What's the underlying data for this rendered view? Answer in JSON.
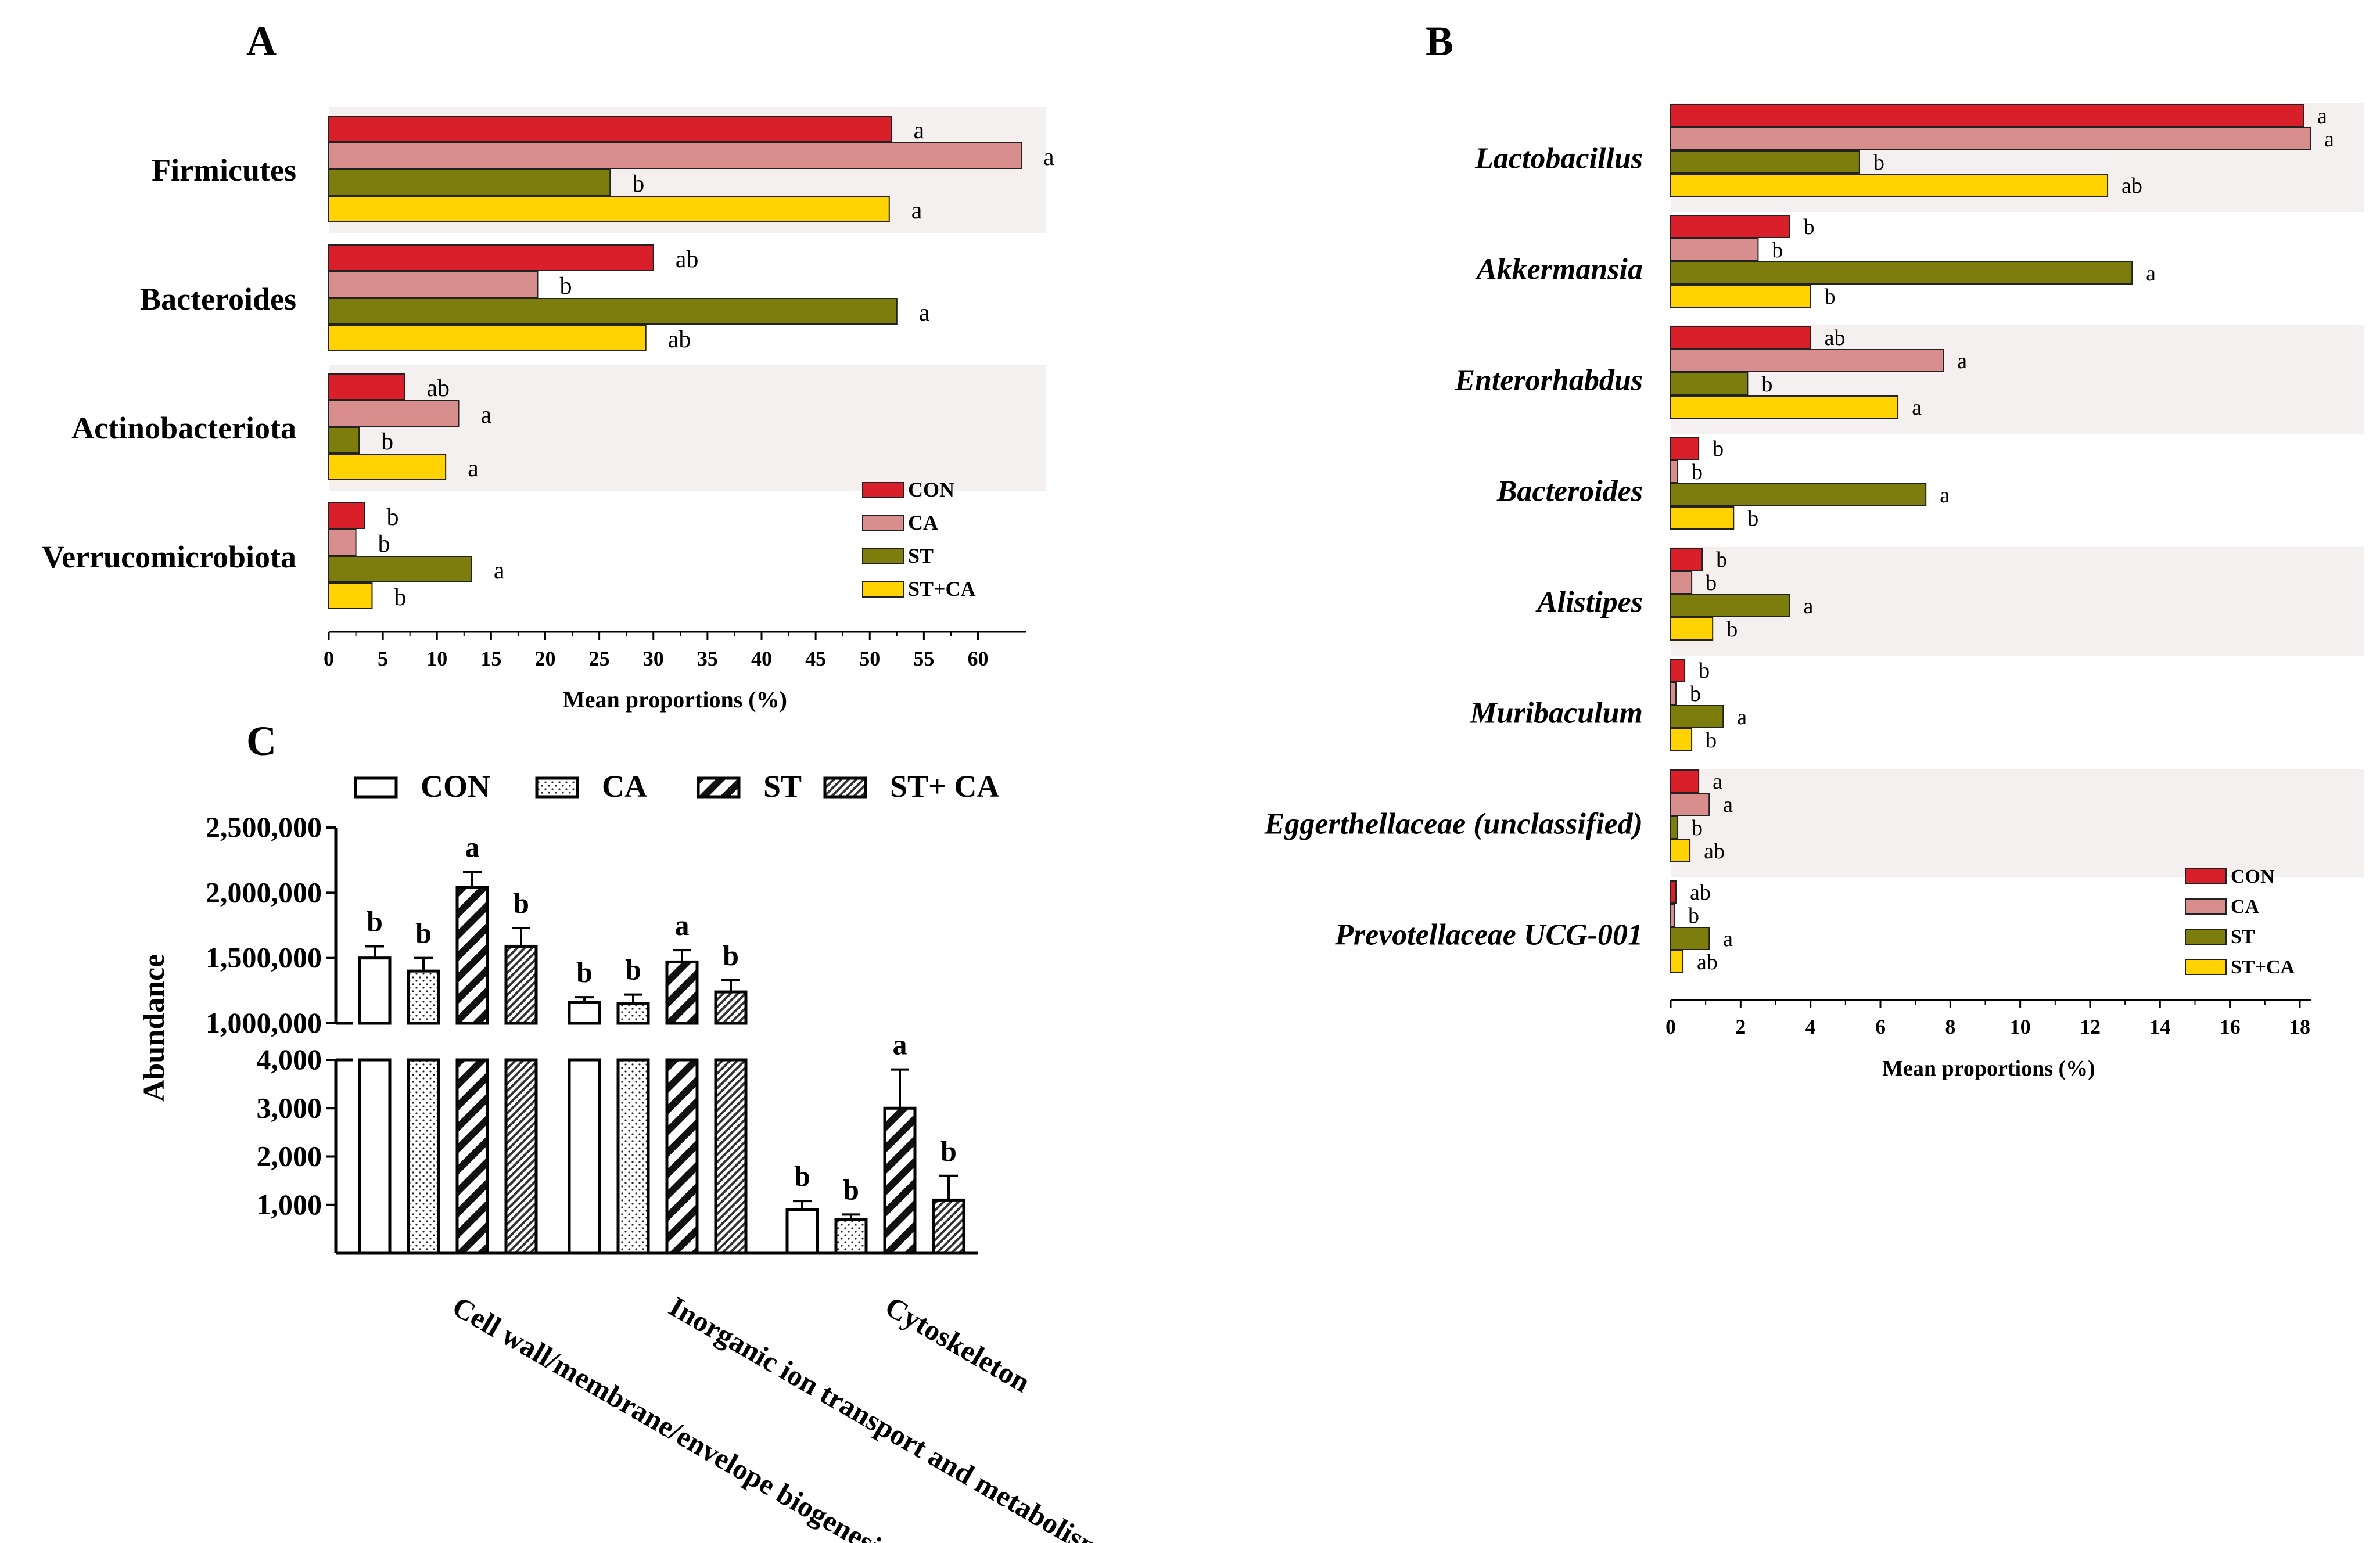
{
  "chart_data": [
    {
      "panel": "A",
      "type": "bar",
      "orientation": "horizontal",
      "xlabel": "Mean proportions (%)",
      "xlim": [
        0,
        64
      ],
      "ticks": [
        0,
        5,
        10,
        15,
        20,
        25,
        30,
        35,
        40,
        45,
        50,
        55,
        60
      ],
      "categories": [
        "Firmicutes",
        "Bacteroides",
        "Actinobacteriota",
        "Verrucomicrobiota"
      ],
      "italic_categories": false,
      "series": [
        {
          "name": "CON",
          "color": "#d81f2a",
          "values": [
            52,
            30,
            7,
            3.3
          ],
          "letters": [
            "a",
            "ab",
            "ab",
            "b"
          ]
        },
        {
          "name": "CA",
          "color": "#d98e8e",
          "values": [
            64,
            19.3,
            12,
            2.5
          ],
          "letters": [
            "a",
            "b",
            "a",
            "b"
          ]
        },
        {
          "name": "ST",
          "color": "#7d7d0e",
          "values": [
            26,
            52.5,
            2.8,
            13.2
          ],
          "letters": [
            "b",
            "a",
            "b",
            "a"
          ]
        },
        {
          "name": "ST+CA",
          "color": "#ffd200",
          "values": [
            51.8,
            29.3,
            10.8,
            4
          ],
          "letters": [
            "a",
            "ab",
            "a",
            "b"
          ]
        }
      ]
    },
    {
      "panel": "B",
      "type": "bar",
      "orientation": "horizontal",
      "xlabel": "Mean proportions (%)",
      "xlim": [
        0,
        18.2
      ],
      "ticks": [
        0,
        2,
        4,
        6,
        8,
        10,
        12,
        14,
        16,
        18
      ],
      "categories": [
        "Lactobacillus",
        "Akkermansia",
        "Enterorhabdus",
        "Bacteroides",
        "Alistipes",
        "Muribaculum",
        "Eggerthellaceae (unclassified)",
        "Prevotellaceae UCG-001"
      ],
      "italic_categories": true,
      "series": [
        {
          "name": "CON",
          "color": "#d81f2a",
          "values": [
            18.1,
            3.4,
            4.0,
            0.8,
            0.9,
            0.4,
            0.8,
            0.15
          ],
          "letters": [
            "a",
            "b",
            "ab",
            "b",
            "b",
            "b",
            "a",
            "ab"
          ]
        },
        {
          "name": "CA",
          "color": "#d98e8e",
          "values": [
            18.3,
            2.5,
            7.8,
            0.2,
            0.6,
            0.15,
            1.1,
            0.1
          ],
          "letters": [
            "a",
            "b",
            "a",
            "b",
            "b",
            "b",
            "a",
            "b"
          ]
        },
        {
          "name": "ST",
          "color": "#7d7d0e",
          "values": [
            5.4,
            13.2,
            2.2,
            7.3,
            3.4,
            1.5,
            0.2,
            1.1
          ],
          "letters": [
            "b",
            "a",
            "b",
            "a",
            "a",
            "a",
            "b",
            "a"
          ]
        },
        {
          "name": "ST+CA",
          "color": "#ffd200",
          "values": [
            12.5,
            4.0,
            6.5,
            1.8,
            1.2,
            0.6,
            0.55,
            0.35
          ],
          "letters": [
            "ab",
            "b",
            "a",
            "b",
            "b",
            "b",
            "ab",
            "ab"
          ]
        }
      ]
    },
    {
      "panel": "C",
      "type": "bar",
      "orientation": "vertical",
      "ylabel": "Abundance",
      "axis_break": true,
      "upper_segment": {
        "range": [
          1000000,
          2500000
        ],
        "ticks": [
          1000000,
          1500000,
          2000000,
          2500000
        ],
        "tick_labels": [
          "1,000,000",
          "1,500,000",
          "2,000,000",
          "2,500,000"
        ]
      },
      "lower_segment": {
        "range": [
          0,
          4000
        ],
        "ticks": [
          1000,
          2000,
          3000,
          4000
        ],
        "tick_labels": [
          "1,000",
          "2,000",
          "3,000",
          "4,000"
        ]
      },
      "categories": [
        "Cell wall/membrane/envelope biogenesis",
        "Inorganic ion transport and metabolism",
        "Cytoskeleton"
      ],
      "series": [
        {
          "name": "CON",
          "legend_label": "CON",
          "pattern": "open",
          "values": [
            1500000,
            1160000,
            900
          ],
          "errors": [
            90000,
            40000,
            180
          ],
          "letters": [
            "b",
            "b",
            "b"
          ]
        },
        {
          "name": "CA",
          "legend_label": "CA",
          "pattern": "dots",
          "values": [
            1400000,
            1150000,
            700
          ],
          "errors": [
            100000,
            70000,
            100
          ],
          "letters": [
            "b",
            "b",
            "b"
          ]
        },
        {
          "name": "ST",
          "legend_label": "ST",
          "pattern": "wide-hatch",
          "values": [
            2040000,
            1470000,
            3000
          ],
          "errors": [
            120000,
            90000,
            800
          ],
          "letters": [
            "a",
            "a",
            "a"
          ]
        },
        {
          "name": "ST+CA",
          "legend_label": "ST+ CA",
          "pattern": "dense-hatch",
          "values": [
            1590000,
            1240000,
            1100
          ],
          "errors": [
            140000,
            90000,
            500
          ],
          "letters": [
            "b",
            "b",
            "b"
          ]
        }
      ]
    }
  ],
  "panel_labels": {
    "a": "A",
    "b": "B",
    "c": "C"
  }
}
